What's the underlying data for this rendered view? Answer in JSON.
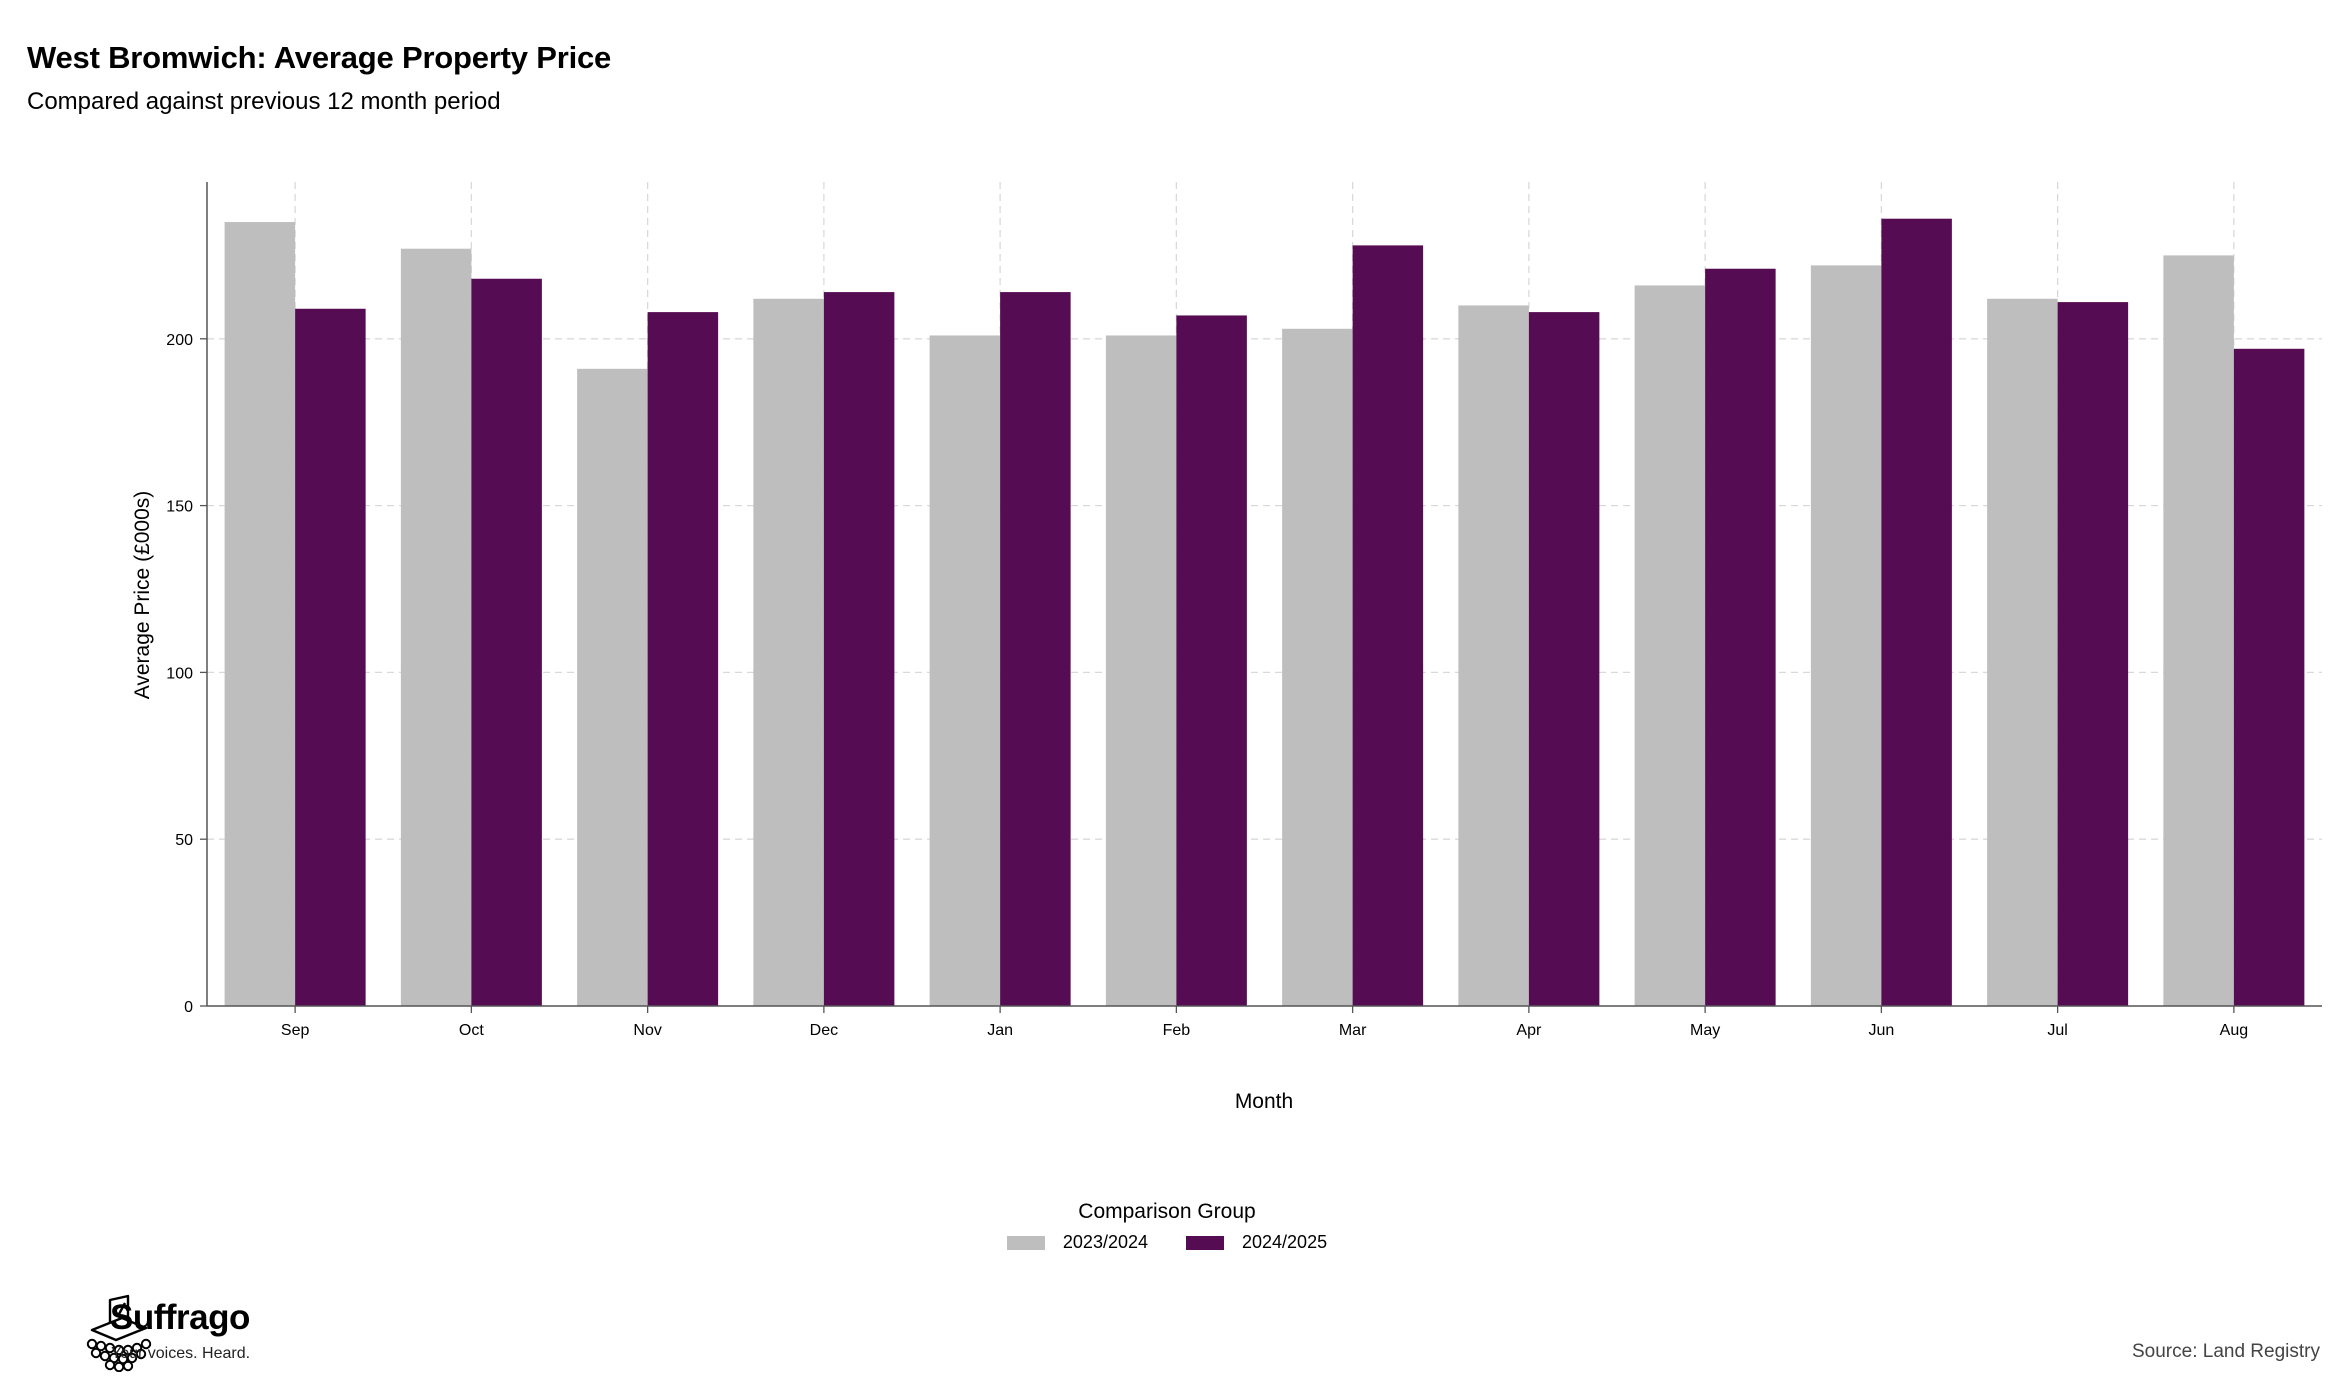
{
  "chart_data": {
    "type": "bar",
    "title": "West Bromwich: Average Property Price",
    "subtitle": "Compared against previous 12 month period",
    "xlabel": "Month",
    "ylabel": "Average Price (£000s)",
    "categories": [
      "Sep",
      "Oct",
      "Nov",
      "Dec",
      "Jan",
      "Feb",
      "Mar",
      "Apr",
      "May",
      "Jun",
      "Jul",
      "Aug"
    ],
    "series": [
      {
        "name": "2023/2024",
        "color": "#bebebe",
        "values": [
          235,
          227,
          191,
          212,
          201,
          201,
          203,
          210,
          216,
          222,
          212,
          225
        ]
      },
      {
        "name": "2024/2025",
        "color": "#560c52",
        "values": [
          209,
          218,
          208,
          214,
          214,
          207,
          228,
          208,
          221,
          236,
          211,
          197
        ]
      }
    ],
    "ylim": [
      0,
      247
    ],
    "yticks": [
      0,
      50,
      100,
      150,
      200
    ],
    "grid": true,
    "legend": {
      "title": "Comparison Group",
      "placement": "bottom"
    }
  },
  "branding": {
    "name": "Suffrago",
    "tagline": "Your voices. Heard.",
    "logo_icon": "ballot-box-crowd-icon"
  },
  "source": "Source: Land Registry"
}
